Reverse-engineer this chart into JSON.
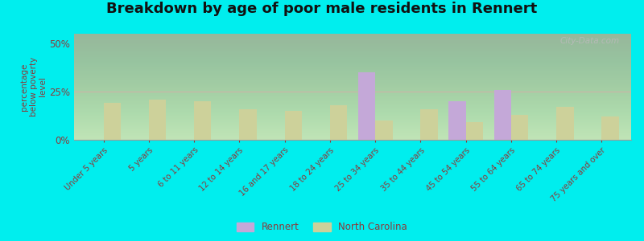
{
  "title": "Breakdown by age of poor male residents in Rennert",
  "categories": [
    "Under 5 years",
    "5 years",
    "6 to 11 years",
    "12 to 14 years",
    "16 and 17 years",
    "18 to 24 years",
    "25 to 34 years",
    "35 to 44 years",
    "45 to 54 years",
    "55 to 64 years",
    "65 to 74 years",
    "75 years and over"
  ],
  "rennert_values": [
    0,
    0,
    0,
    0,
    0,
    0,
    35,
    0,
    20,
    26,
    0,
    0
  ],
  "nc_values": [
    19,
    21,
    20,
    16,
    15,
    18,
    10,
    16,
    9,
    13,
    17,
    12
  ],
  "rennert_color": "#c4a8d8",
  "nc_color": "#cdd19a",
  "ylabel": "percentage\nbelow poverty\nlevel",
  "ylim": [
    0,
    55
  ],
  "yticks": [
    0,
    25,
    50
  ],
  "ytick_labels": [
    "0%",
    "25%",
    "50%"
  ],
  "outer_bg": "#00eeee",
  "watermark": "City-Data.com",
  "title_fontsize": 13,
  "legend_labels": [
    "Rennert",
    "North Carolina"
  ],
  "bar_width": 0.38,
  "grad_top_color": "#f0f8e8",
  "grad_bottom_color": "#d8efc8"
}
